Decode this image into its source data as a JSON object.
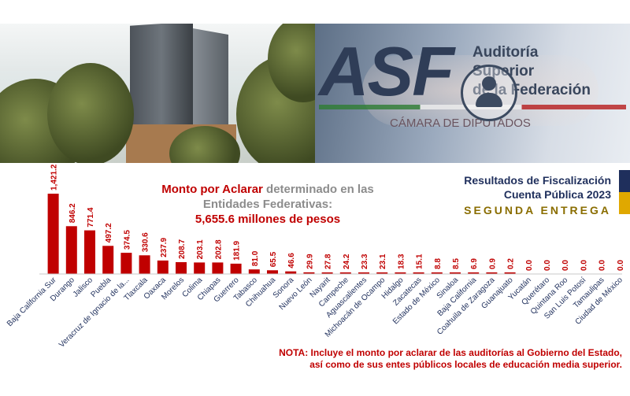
{
  "banner": {
    "logo_text": "ASF",
    "org_line1": "Auditoría",
    "org_line2": "Superior",
    "org_line3": "de la Federación",
    "chamber": "CÁMARA DE DIPUTADOS"
  },
  "header": {
    "line1": "Resultados de Fiscalización",
    "line2": "Cuenta Pública 2023",
    "line3": "SEGUNDA ENTREGA"
  },
  "headline": {
    "red_part": "Monto por Aclarar",
    "grey_part1": " determinado en las",
    "grey_part2": "Entidades Federativas:",
    "total": "5,655.6 millones de pesos"
  },
  "note": {
    "label": "NOTA:",
    "line1": " Incluye el monto por aclarar de las auditorías al Gobierno del Estado,",
    "line2": "así como de sus entes públicos locales de educación media superior."
  },
  "colors": {
    "bar": "#c00000",
    "navy": "#1f2f5c",
    "gold": "#8a6d00",
    "grey_text": "#8c8c8c"
  },
  "chart_data": {
    "type": "bar",
    "categories": [
      "Baja California Sur",
      "Durango",
      "Jalisco",
      "Puebla",
      "Veracruz de Ignacio de la...",
      "Tlaxcala",
      "Oaxaca",
      "Morelos",
      "Colima",
      "Chiapas",
      "Guerrero",
      "Tabasco",
      "Chihuahua",
      "Sonora",
      "Nuevo León",
      "Nayarit",
      "Campeche",
      "Aguascalientes",
      "Michoacán de Ocampo",
      "Hidalgo",
      "Zacatecas",
      "Estado de México",
      "Sinaloa",
      "Baja California",
      "Coahuila de Zaragoza",
      "Guanajuato",
      "Yucatán",
      "Querétaro",
      "Quintana Roo",
      "San Luis Potosí",
      "Tamaulipas",
      "Ciudad de México"
    ],
    "values": [
      1421.2,
      846.2,
      771.4,
      497.2,
      374.5,
      330.6,
      237.9,
      208.7,
      203.1,
      202.8,
      181.9,
      81.0,
      65.5,
      46.6,
      29.9,
      27.8,
      24.2,
      23.3,
      23.1,
      18.3,
      15.1,
      8.8,
      8.5,
      6.9,
      0.9,
      0.2,
      0.0,
      0.0,
      0.0,
      0.0,
      0.0,
      0.0
    ],
    "labels": [
      "1,421.2",
      "846.2",
      "771.4",
      "497.2",
      "374.5",
      "330.6",
      "237.9",
      "208.7",
      "203.1",
      "202.8",
      "181.9",
      "81.0",
      "65.5",
      "46.6",
      "29.9",
      "27.8",
      "24.2",
      "23.3",
      "23.1",
      "18.3",
      "15.1",
      "8.8",
      "8.5",
      "6.9",
      "0.9",
      "0.2",
      "0.0",
      "0.0",
      "0.0",
      "0.0",
      "0.0",
      "0.0"
    ],
    "ylim": [
      0,
      1421.2
    ],
    "grid": false,
    "legend": "none"
  }
}
